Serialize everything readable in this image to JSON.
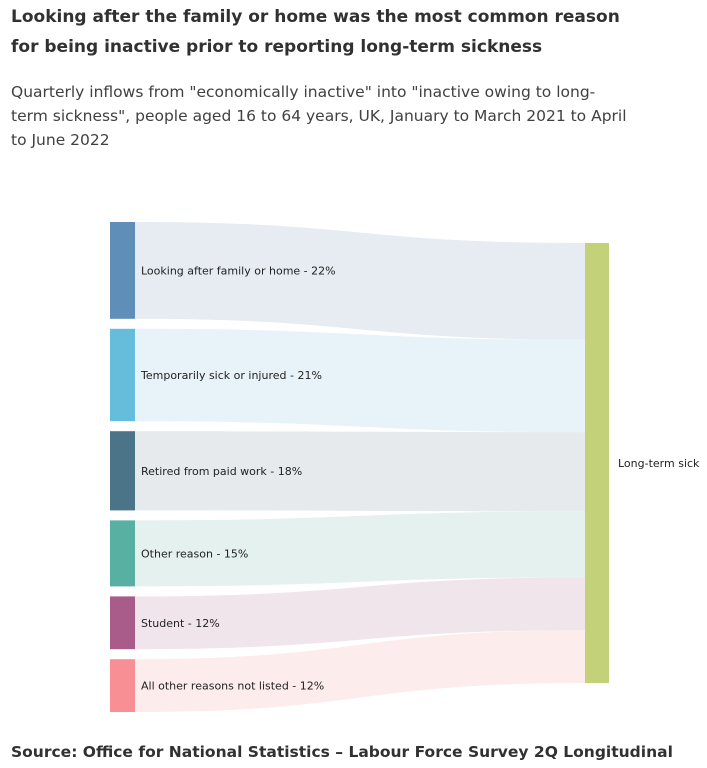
{
  "title": "Looking after the family or home was the most common reason for being inactive prior to reporting long-term sickness",
  "subtitle": "Quarterly inflows from \"economically inactive\" into \"inactive owing to long-term sickness\", people aged 16 to 64 years, UK, January to March 2021 to April to June 2022",
  "source": "Source: Office for National Statistics – Labour Force Survey 2Q Longitudinal",
  "chart_data": {
    "type": "sankey",
    "target": {
      "name": "Long-term sick",
      "color": "#c3d279"
    },
    "sources": [
      {
        "name": "Looking after family or home",
        "label": "Looking after family or home - 22%",
        "value": 22,
        "color": "#5f8fb8",
        "flow_color": "#e6ecf2"
      },
      {
        "name": "Temporarily sick or injured",
        "label": "Temporarily sick or injured - 21%",
        "value": 21,
        "color": "#66bcdb",
        "flow_color": "#e8f3f9"
      },
      {
        "name": "Retired from paid work",
        "label": "Retired from paid work - 18%",
        "value": 18,
        "color": "#4c7489",
        "flow_color": "#e6eaed"
      },
      {
        "name": "Other reason",
        "label": "Other reason - 15%",
        "value": 15,
        "color": "#58b0a2",
        "flow_color": "#e5f1ef"
      },
      {
        "name": "Student",
        "label": "Student - 12%",
        "value": 12,
        "color": "#a95c8a",
        "flow_color": "#f1e5ec"
      },
      {
        "name": "All other reasons not listed",
        "label": "All other reasons not listed - 12%",
        "value": 12,
        "color": "#f78f95",
        "flow_color": "#fcecec"
      }
    ]
  }
}
